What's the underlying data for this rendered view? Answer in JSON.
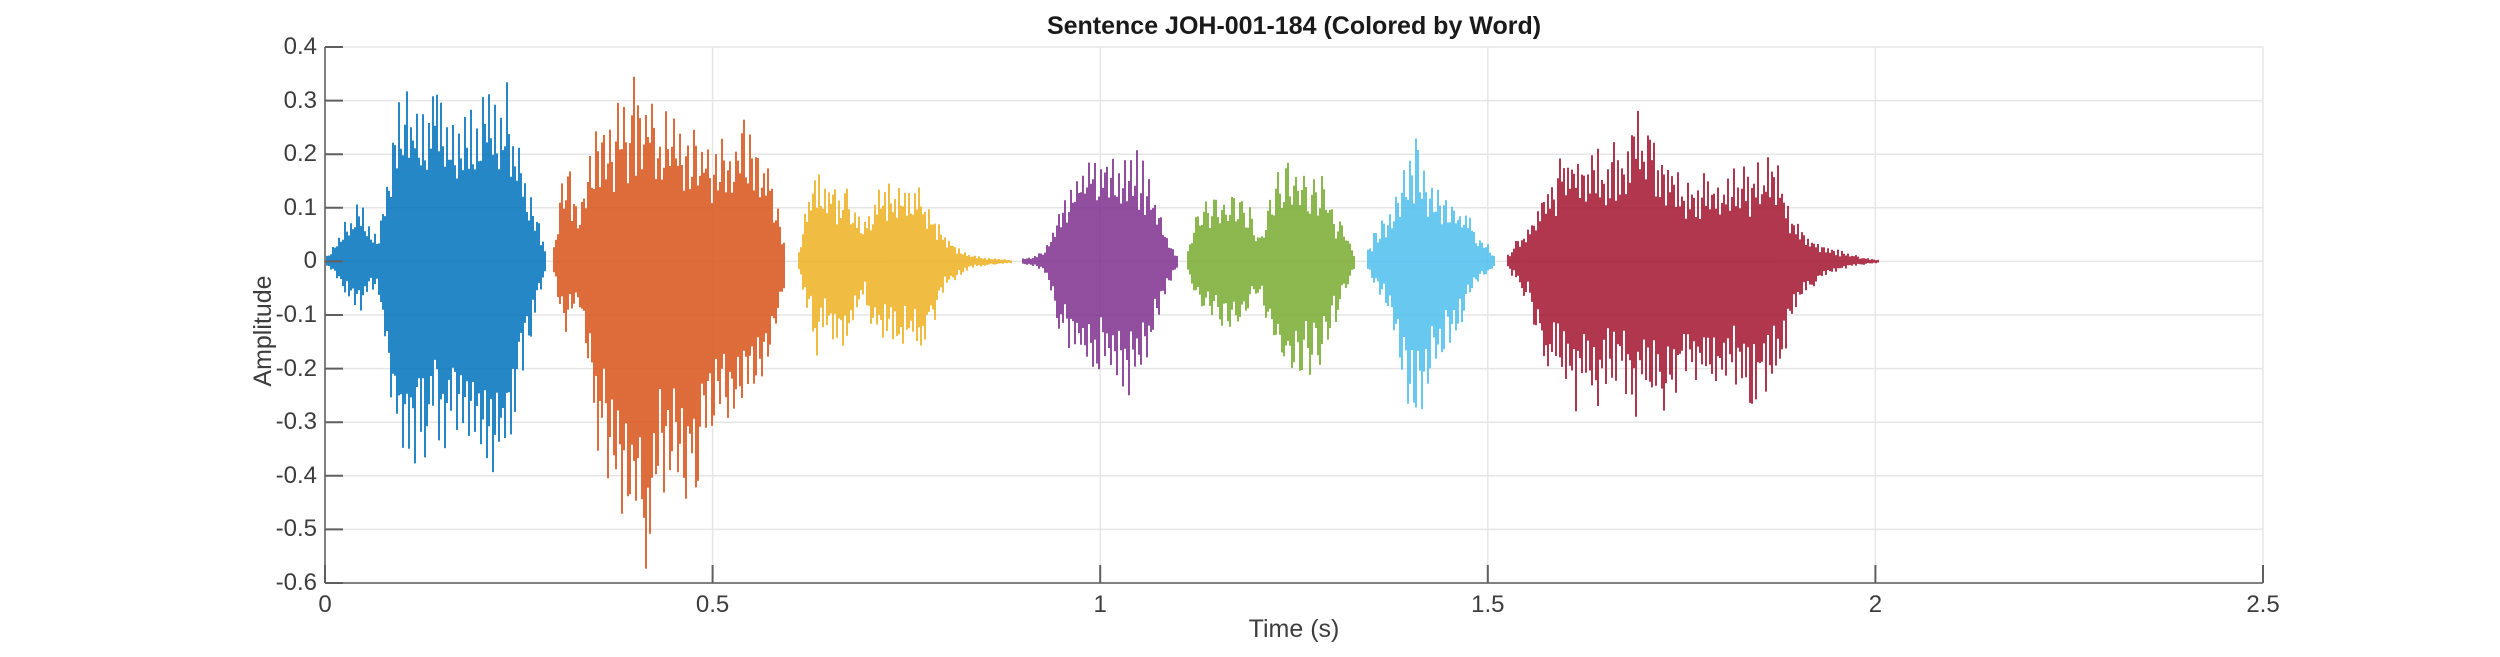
{
  "chart_data": {
    "type": "line",
    "subtype": "audio-waveform",
    "title": "Sentence JOH-001-184 (Colored by Word)",
    "xlabel": "Time (s)",
    "ylabel": "Amplitude",
    "xlim": [
      0,
      2.5
    ],
    "ylim": [
      -0.6,
      0.4
    ],
    "grid": true,
    "grid_color": "#e6e6e6",
    "axis_color": "#808080",
    "tick_color": "#5f5f5f",
    "background_color": "#ffffff",
    "x_ticks": [
      {
        "value": 0,
        "label": "0"
      },
      {
        "value": 0.5,
        "label": "0.5"
      },
      {
        "value": 1,
        "label": "1"
      },
      {
        "value": 1.5,
        "label": "1.5"
      },
      {
        "value": 2,
        "label": "2"
      },
      {
        "value": 2.5,
        "label": "2.5"
      }
    ],
    "y_ticks": [
      {
        "value": 0.4,
        "label": "0.4"
      },
      {
        "value": 0.3,
        "label": "0.3"
      },
      {
        "value": 0.2,
        "label": "0.2"
      },
      {
        "value": 0.1,
        "label": "0.1"
      },
      {
        "value": 0,
        "label": "0"
      },
      {
        "value": -0.1,
        "label": "-0.1"
      },
      {
        "value": -0.2,
        "label": "-0.2"
      },
      {
        "value": -0.3,
        "label": "-0.3"
      },
      {
        "value": -0.4,
        "label": "-0.4"
      },
      {
        "value": -0.5,
        "label": "-0.5"
      },
      {
        "value": -0.6,
        "label": "-0.6"
      }
    ],
    "segments": [
      {
        "id": "word-1",
        "color": "#0072BD",
        "start": 0.003,
        "end": 0.286,
        "period": 6,
        "envelope": [
          [
            0.003,
            0.01,
            0.01
          ],
          [
            0.018,
            0.05,
            0.04
          ],
          [
            0.032,
            0.09,
            0.07
          ],
          [
            0.042,
            0.12,
            0.1
          ],
          [
            0.055,
            0.08,
            0.07
          ],
          [
            0.068,
            0.04,
            0.05
          ],
          [
            0.078,
            0.14,
            0.18
          ],
          [
            0.09,
            0.28,
            0.36
          ],
          [
            0.105,
            0.31,
            0.41
          ],
          [
            0.114,
            0.32,
            0.43
          ],
          [
            0.128,
            0.31,
            0.36
          ],
          [
            0.142,
            0.3,
            0.34
          ],
          [
            0.152,
            0.32,
            0.38
          ],
          [
            0.165,
            0.29,
            0.33
          ],
          [
            0.178,
            0.26,
            0.36
          ],
          [
            0.19,
            0.28,
            0.38
          ],
          [
            0.202,
            0.3,
            0.4
          ],
          [
            0.214,
            0.33,
            0.41
          ],
          [
            0.224,
            0.37,
            0.42
          ],
          [
            0.232,
            0.35,
            0.38
          ],
          [
            0.242,
            0.28,
            0.3
          ],
          [
            0.252,
            0.22,
            0.22
          ],
          [
            0.262,
            0.15,
            0.16
          ],
          [
            0.272,
            0.09,
            0.1
          ],
          [
            0.28,
            0.05,
            0.05
          ],
          [
            0.286,
            0.015,
            0.015
          ]
        ]
      },
      {
        "id": "word-2",
        "color": "#D95319",
        "start": 0.296,
        "end": 0.594,
        "period": 7,
        "envelope": [
          [
            0.296,
            0.03,
            0.03
          ],
          [
            0.304,
            0.15,
            0.1
          ],
          [
            0.312,
            0.19,
            0.14
          ],
          [
            0.32,
            0.14,
            0.11
          ],
          [
            0.33,
            0.11,
            0.1
          ],
          [
            0.34,
            0.2,
            0.22
          ],
          [
            0.35,
            0.28,
            0.33
          ],
          [
            0.362,
            0.3,
            0.42
          ],
          [
            0.375,
            0.29,
            0.46
          ],
          [
            0.388,
            0.32,
            0.5
          ],
          [
            0.4,
            0.34,
            0.54
          ],
          [
            0.412,
            0.32,
            0.57
          ],
          [
            0.425,
            0.29,
            0.52
          ],
          [
            0.438,
            0.27,
            0.45
          ],
          [
            0.45,
            0.3,
            0.4
          ],
          [
            0.462,
            0.27,
            0.48
          ],
          [
            0.475,
            0.26,
            0.43
          ],
          [
            0.488,
            0.24,
            0.37
          ],
          [
            0.5,
            0.22,
            0.32
          ],
          [
            0.512,
            0.24,
            0.29
          ],
          [
            0.525,
            0.21,
            0.33
          ],
          [
            0.538,
            0.27,
            0.3
          ],
          [
            0.552,
            0.25,
            0.27
          ],
          [
            0.565,
            0.19,
            0.23
          ],
          [
            0.578,
            0.15,
            0.16
          ],
          [
            0.588,
            0.09,
            0.09
          ],
          [
            0.594,
            0.03,
            0.03
          ]
        ]
      },
      {
        "id": "word-3",
        "color": "#EDB120",
        "start": 0.612,
        "end": 0.886,
        "period": 5,
        "envelope": [
          [
            0.612,
            0.02,
            0.02
          ],
          [
            0.62,
            0.1,
            0.09
          ],
          [
            0.628,
            0.16,
            0.13
          ],
          [
            0.633,
            0.2,
            0.2
          ],
          [
            0.641,
            0.16,
            0.14
          ],
          [
            0.652,
            0.17,
            0.16
          ],
          [
            0.663,
            0.15,
            0.17
          ],
          [
            0.675,
            0.13,
            0.15
          ],
          [
            0.685,
            0.11,
            0.11
          ],
          [
            0.695,
            0.08,
            0.08
          ],
          [
            0.706,
            0.11,
            0.12
          ],
          [
            0.717,
            0.14,
            0.15
          ],
          [
            0.728,
            0.16,
            0.16
          ],
          [
            0.74,
            0.155,
            0.17
          ],
          [
            0.753,
            0.15,
            0.18
          ],
          [
            0.766,
            0.14,
            0.16
          ],
          [
            0.78,
            0.12,
            0.13
          ],
          [
            0.792,
            0.08,
            0.09
          ],
          [
            0.803,
            0.05,
            0.05
          ],
          [
            0.815,
            0.03,
            0.03
          ],
          [
            0.83,
            0.015,
            0.015
          ],
          [
            0.85,
            0.008,
            0.008
          ],
          [
            0.87,
            0.005,
            0.005
          ],
          [
            0.886,
            0.003,
            0.003
          ]
        ]
      },
      {
        "id": "word-4",
        "color": "#7E2F8E",
        "start": 0.9,
        "end": 1.1,
        "period": 6,
        "envelope": [
          [
            0.9,
            0.006,
            0.006
          ],
          [
            0.915,
            0.01,
            0.01
          ],
          [
            0.928,
            0.02,
            0.02
          ],
          [
            0.938,
            0.06,
            0.07
          ],
          [
            0.948,
            0.11,
            0.13
          ],
          [
            0.96,
            0.15,
            0.18
          ],
          [
            0.972,
            0.18,
            0.2
          ],
          [
            0.985,
            0.2,
            0.22
          ],
          [
            1.0,
            0.21,
            0.23
          ],
          [
            1.012,
            0.2,
            0.235
          ],
          [
            1.025,
            0.205,
            0.24
          ],
          [
            1.038,
            0.215,
            0.245
          ],
          [
            1.05,
            0.2,
            0.22
          ],
          [
            1.06,
            0.17,
            0.19
          ],
          [
            1.072,
            0.12,
            0.13
          ],
          [
            1.082,
            0.07,
            0.08
          ],
          [
            1.092,
            0.035,
            0.04
          ],
          [
            1.1,
            0.012,
            0.012
          ]
        ]
      },
      {
        "id": "word-5",
        "color": "#77AC30",
        "start": 1.113,
        "end": 1.328,
        "period": 9,
        "envelope": [
          [
            1.113,
            0.02,
            0.02
          ],
          [
            1.124,
            0.09,
            0.08
          ],
          [
            1.135,
            0.13,
            0.11
          ],
          [
            1.148,
            0.12,
            0.11
          ],
          [
            1.16,
            0.13,
            0.12
          ],
          [
            1.172,
            0.145,
            0.13
          ],
          [
            1.184,
            0.13,
            0.12
          ],
          [
            1.196,
            0.09,
            0.08
          ],
          [
            1.206,
            0.05,
            0.05
          ],
          [
            1.216,
            0.11,
            0.13
          ],
          [
            1.228,
            0.16,
            0.18
          ],
          [
            1.24,
            0.19,
            0.22
          ],
          [
            1.252,
            0.195,
            0.24
          ],
          [
            1.264,
            0.185,
            0.25
          ],
          [
            1.277,
            0.17,
            0.22
          ],
          [
            1.29,
            0.15,
            0.18
          ],
          [
            1.302,
            0.11,
            0.12
          ],
          [
            1.314,
            0.07,
            0.07
          ],
          [
            1.328,
            0.02,
            0.02
          ]
        ]
      },
      {
        "id": "word-6",
        "color": "#4DBEEE",
        "start": 1.346,
        "end": 1.508,
        "period": 7,
        "envelope": [
          [
            1.346,
            0.025,
            0.02
          ],
          [
            1.358,
            0.07,
            0.06
          ],
          [
            1.37,
            0.09,
            0.1
          ],
          [
            1.382,
            0.13,
            0.16
          ],
          [
            1.394,
            0.2,
            0.27
          ],
          [
            1.403,
            0.236,
            0.333
          ],
          [
            1.413,
            0.21,
            0.29
          ],
          [
            1.425,
            0.18,
            0.25
          ],
          [
            1.437,
            0.16,
            0.22
          ],
          [
            1.449,
            0.14,
            0.18
          ],
          [
            1.461,
            0.11,
            0.13
          ],
          [
            1.473,
            0.09,
            0.09
          ],
          [
            1.485,
            0.06,
            0.05
          ],
          [
            1.497,
            0.04,
            0.03
          ],
          [
            1.508,
            0.012,
            0.012
          ]
        ]
      },
      {
        "id": "word-7",
        "color": "#A2142F",
        "start": 1.526,
        "end": 2.005,
        "period": 5,
        "envelope": [
          [
            1.526,
            0.015,
            0.015
          ],
          [
            1.54,
            0.045,
            0.045
          ],
          [
            1.553,
            0.07,
            0.08
          ],
          [
            1.566,
            0.12,
            0.15
          ],
          [
            1.58,
            0.16,
            0.2
          ],
          [
            1.594,
            0.19,
            0.24
          ],
          [
            1.608,
            0.21,
            0.27
          ],
          [
            1.622,
            0.2,
            0.28
          ],
          [
            1.636,
            0.22,
            0.26
          ],
          [
            1.65,
            0.2,
            0.27
          ],
          [
            1.664,
            0.22,
            0.25
          ],
          [
            1.678,
            0.24,
            0.27
          ],
          [
            1.686,
            0.27,
            0.29
          ],
          [
            1.691,
            0.33,
            0.33
          ],
          [
            1.697,
            0.26,
            0.28
          ],
          [
            1.71,
            0.22,
            0.27
          ],
          [
            1.724,
            0.21,
            0.28
          ],
          [
            1.738,
            0.18,
            0.25
          ],
          [
            1.752,
            0.17,
            0.23
          ],
          [
            1.766,
            0.18,
            0.23
          ],
          [
            1.78,
            0.16,
            0.23
          ],
          [
            1.795,
            0.16,
            0.24
          ],
          [
            1.81,
            0.17,
            0.25
          ],
          [
            1.825,
            0.17,
            0.25
          ],
          [
            1.84,
            0.18,
            0.26
          ],
          [
            1.855,
            0.19,
            0.27
          ],
          [
            1.868,
            0.21,
            0.275
          ],
          [
            1.878,
            0.17,
            0.21
          ],
          [
            1.888,
            0.12,
            0.14
          ],
          [
            1.898,
            0.08,
            0.09
          ],
          [
            1.91,
            0.055,
            0.06
          ],
          [
            1.925,
            0.04,
            0.04
          ],
          [
            1.945,
            0.025,
            0.022
          ],
          [
            1.965,
            0.015,
            0.012
          ],
          [
            1.985,
            0.008,
            0.006
          ],
          [
            2.005,
            0.003,
            0.003
          ]
        ]
      }
    ]
  }
}
